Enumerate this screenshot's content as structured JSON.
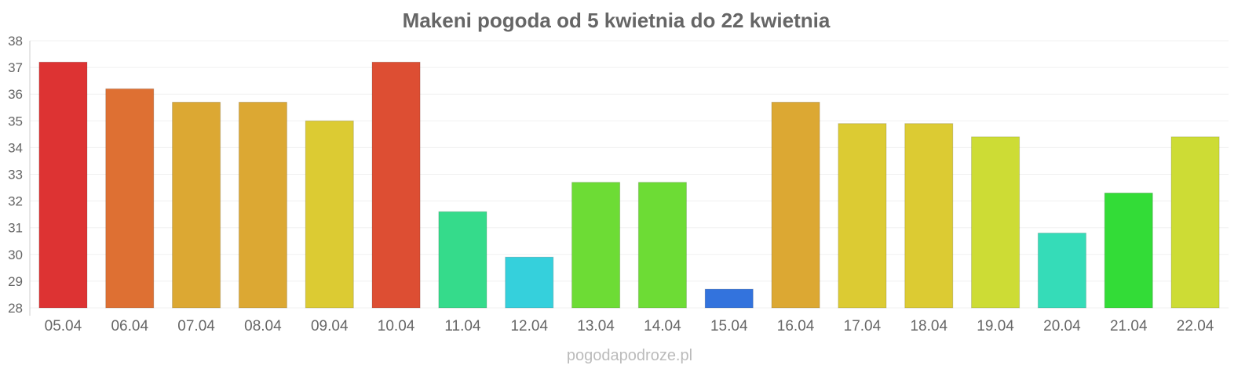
{
  "chart_data": {
    "type": "bar",
    "title": "Makeni pogoda od 5 kwietnia do 22 kwietnia",
    "xlabel": "",
    "ylabel": "",
    "ylim": [
      28,
      38
    ],
    "yticks": [
      "28",
      "29",
      "30",
      "31",
      "32",
      "33",
      "34",
      "35",
      "36",
      "37",
      "38"
    ],
    "grid": true,
    "categories": [
      "05.04",
      "06.04",
      "07.04",
      "08.04",
      "09.04",
      "10.04",
      "11.04",
      "12.04",
      "13.04",
      "14.04",
      "15.04",
      "16.04",
      "17.04",
      "18.04",
      "19.04",
      "20.04",
      "21.04",
      "22.04"
    ],
    "values": [
      37.2,
      36.2,
      35.7,
      35.7,
      35.0,
      37.2,
      31.6,
      29.9,
      32.7,
      32.7,
      28.7,
      35.7,
      34.9,
      34.9,
      34.4,
      30.8,
      32.3,
      34.4
    ],
    "colors": [
      "#dd3333",
      "#de7033",
      "#dca833",
      "#dca833",
      "#dccb33",
      "#dd4e33",
      "#35db8b",
      "#35d0dc",
      "#6ddc35",
      "#6ddc35",
      "#3373dd",
      "#dca833",
      "#dccb33",
      "#dccb33",
      "#cddc35",
      "#35dcb8",
      "#33dc37",
      "#cddc35"
    ]
  },
  "credit": "pogodapodroze.pl"
}
